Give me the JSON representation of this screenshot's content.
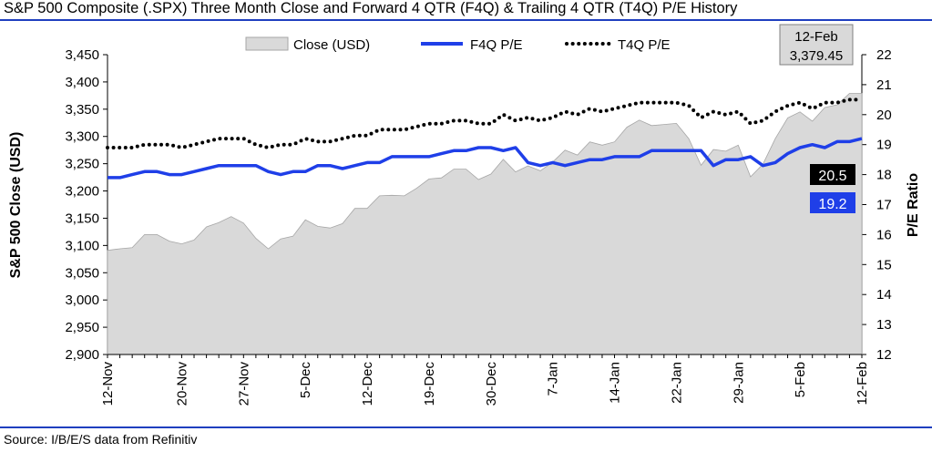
{
  "title": "S&P 500 Composite (.SPX) Three Month Close and Forward 4 QTR (F4Q) & Trailing 4 QTR (T4Q) P/E History",
  "source": "Source: I/B/E/S data from Refinitiv",
  "colors": {
    "rule": "#1f3fbf",
    "close_fill": "#d9d9d9",
    "close_stroke": "#a6a6a6",
    "f4q": "#1f3fe8",
    "t4q": "#000000"
  },
  "chart_data": {
    "type": "line",
    "x_tick_labels": [
      "12-Nov",
      "20-Nov",
      "27-Nov",
      "5-Dec",
      "12-Dec",
      "19-Dec",
      "30-Dec",
      "7-Jan",
      "14-Jan",
      "22-Jan",
      "29-Jan",
      "5-Feb",
      "12-Feb"
    ],
    "x_tick_index": [
      0,
      6,
      11,
      16,
      21,
      26,
      31,
      36,
      41,
      46,
      51,
      56,
      61
    ],
    "num_points": 62,
    "y_left": {
      "label": "S&P 500 Close (USD)",
      "ticks": [
        "2,900",
        "2,950",
        "3,000",
        "3,050",
        "3,100",
        "3,150",
        "3,200",
        "3,250",
        "3,300",
        "3,350",
        "3,400",
        "3,450"
      ],
      "min": 2900,
      "max": 3450
    },
    "y_right": {
      "label": "P/E Ratio",
      "ticks": [
        "12",
        "13",
        "14",
        "15",
        "16",
        "17",
        "18",
        "19",
        "20",
        "21",
        "22"
      ],
      "min": 12,
      "max": 22
    },
    "series": [
      {
        "name": "Close (USD)",
        "type": "area",
        "axis": "left",
        "values": [
          3091,
          3094,
          3096,
          3120,
          3120,
          3108,
          3103,
          3110,
          3134,
          3142,
          3153,
          3141,
          3113,
          3094,
          3112,
          3117,
          3147,
          3135,
          3132,
          3140,
          3168,
          3168,
          3191,
          3192,
          3191,
          3205,
          3222,
          3224,
          3240,
          3240,
          3221,
          3231,
          3258,
          3235,
          3246,
          3237,
          3253,
          3275,
          3266,
          3290,
          3284,
          3290,
          3317,
          3330,
          3320,
          3322,
          3324,
          3296,
          3247,
          3276,
          3273,
          3284,
          3226,
          3249,
          3296,
          3334,
          3345,
          3328,
          3353,
          3358,
          3379,
          3379
        ]
      },
      {
        "name": "F4Q P/E",
        "type": "line",
        "axis": "right",
        "values": [
          17.9,
          17.9,
          18.0,
          18.1,
          18.1,
          18.0,
          18.0,
          18.1,
          18.2,
          18.3,
          18.3,
          18.3,
          18.3,
          18.1,
          18.0,
          18.1,
          18.1,
          18.3,
          18.3,
          18.2,
          18.3,
          18.4,
          18.4,
          18.6,
          18.6,
          18.6,
          18.6,
          18.7,
          18.8,
          18.8,
          18.9,
          18.9,
          18.8,
          18.9,
          18.4,
          18.3,
          18.4,
          18.3,
          18.4,
          18.5,
          18.5,
          18.6,
          18.6,
          18.6,
          18.8,
          18.8,
          18.8,
          18.8,
          18.8,
          18.3,
          18.5,
          18.5,
          18.6,
          18.3,
          18.4,
          18.7,
          18.9,
          19.0,
          18.9,
          19.1,
          19.1,
          19.2
        ]
      },
      {
        "name": "T4Q P/E",
        "type": "dotted",
        "axis": "right",
        "values": [
          18.9,
          18.9,
          18.9,
          19.0,
          19.0,
          19.0,
          18.9,
          19.0,
          19.1,
          19.2,
          19.2,
          19.2,
          19.0,
          18.9,
          19.0,
          19.0,
          19.2,
          19.1,
          19.1,
          19.2,
          19.3,
          19.3,
          19.5,
          19.5,
          19.5,
          19.6,
          19.7,
          19.7,
          19.8,
          19.8,
          19.7,
          19.7,
          20.0,
          19.8,
          19.9,
          19.8,
          19.9,
          20.1,
          20.0,
          20.2,
          20.1,
          20.2,
          20.3,
          20.4,
          20.4,
          20.4,
          20.4,
          20.3,
          19.9,
          20.1,
          20.0,
          20.1,
          19.7,
          19.8,
          20.1,
          20.3,
          20.4,
          20.2,
          20.4,
          20.4,
          20.5,
          20.5
        ]
      }
    ],
    "callouts": {
      "date": "12-Feb",
      "close": "3,379.45",
      "t4q": "20.5",
      "f4q": "19.2"
    }
  }
}
